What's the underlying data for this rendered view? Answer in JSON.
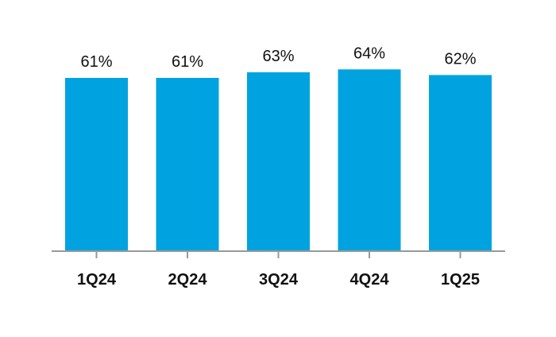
{
  "chart_data": {
    "type": "bar",
    "categories": [
      "1Q24",
      "2Q24",
      "3Q24",
      "4Q24",
      "1Q25"
    ],
    "values": [
      61,
      61,
      63,
      64,
      62
    ],
    "value_labels": [
      "61%",
      "61%",
      "63%",
      "64%",
      "62%"
    ],
    "title": "",
    "xlabel": "",
    "ylabel": "",
    "ylim": [
      0,
      100
    ],
    "grid": false,
    "legend": "none",
    "colors": {
      "bar": "#00A3E0",
      "axis": "#999999",
      "text": "#111111"
    }
  }
}
